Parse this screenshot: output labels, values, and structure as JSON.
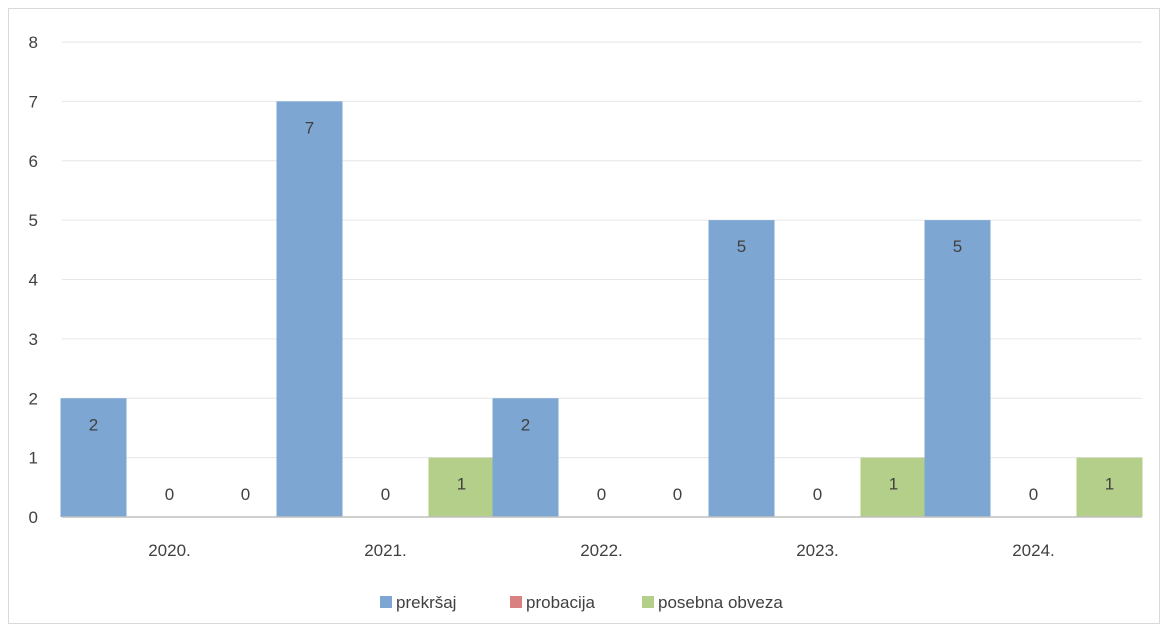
{
  "chart_data": {
    "type": "bar",
    "title": "",
    "xlabel": "",
    "ylabel": "",
    "categories": [
      "2020.",
      "2021.",
      "2022.",
      "2023.",
      "2024."
    ],
    "series": [
      {
        "name": "prekršaj",
        "values": [
          2,
          7,
          2,
          5,
          5
        ],
        "color": "#7ea6d3"
      },
      {
        "name": "probacija",
        "values": [
          0,
          0,
          0,
          0,
          0
        ],
        "color": "#d98080"
      },
      {
        "name": "posebna obveza",
        "values": [
          0,
          1,
          0,
          1,
          1
        ],
        "color": "#b4cf8a"
      }
    ],
    "ylim": [
      0,
      8
    ],
    "yticks": [
      "0",
      "1",
      "2",
      "3",
      "4",
      "5",
      "6",
      "7",
      "8"
    ],
    "grid": true,
    "gridline_color": "#e6e6e6",
    "axis_color": "#bfbfbf",
    "data_labels": true,
    "legend_position": "bottom"
  }
}
